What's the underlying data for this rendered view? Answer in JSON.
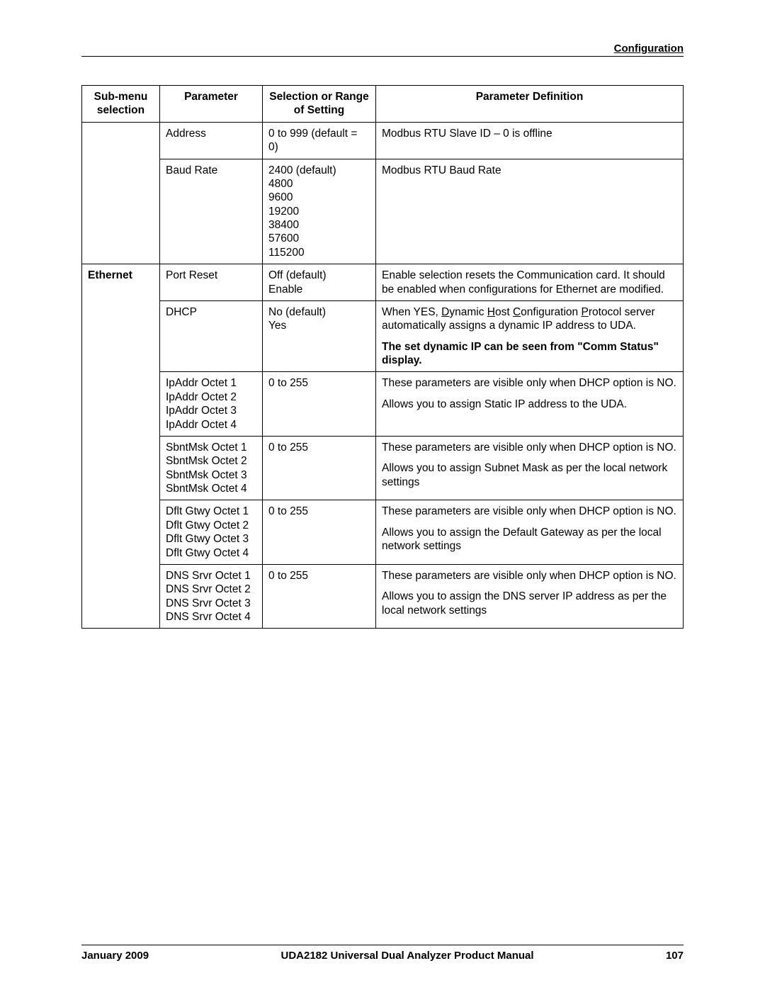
{
  "header": {
    "section": "Configuration"
  },
  "table": {
    "headers": {
      "submenu": "Sub-menu selection",
      "parameter": "Parameter",
      "range": "Selection or Range of Setting",
      "definition": "Parameter Definition"
    },
    "rows": {
      "address": {
        "param": "Address",
        "range": "0 to 999 (default = 0)",
        "def": "Modbus RTU Slave ID – 0 is offline"
      },
      "baud": {
        "param": "Baud Rate",
        "range_lines": [
          "2400 (default)",
          "4800",
          "9600",
          "19200",
          "38400",
          "57600",
          "115200"
        ],
        "def": "Modbus RTU Baud Rate"
      },
      "ethernet_label": "Ethernet",
      "portreset": {
        "param": "Port Reset",
        "range_lines": [
          "Off (default)",
          "Enable"
        ],
        "def": "Enable selection resets the Communication card. It should be enabled when configurations for Ethernet are modified."
      },
      "dhcp": {
        "param": "DHCP",
        "range_lines": [
          "No (default)",
          "Yes"
        ],
        "def_pre": "When YES, ",
        "d": "D",
        "yn": "ynamic ",
        "h": "H",
        "ost": "ost ",
        "c": "C",
        "onf": "onfiguration ",
        "p": "P",
        "rot": "rotocol server automatically assigns a dynamic IP address to UDA.",
        "def_bold": "The set dynamic IP can be seen from \"Comm Status\" display."
      },
      "ipaddr": {
        "param_lines": [
          "IpAddr Octet 1",
          "IpAddr Octet 2",
          "IpAddr Octet 3",
          "IpAddr Octet 4"
        ],
        "range": "0 to 255",
        "def1": "These parameters are visible only when DHCP option is NO.",
        "def2": "Allows you to assign Static IP address to the UDA."
      },
      "subnet": {
        "param_lines": [
          "SbntMsk Octet 1",
          "SbntMsk Octet 2",
          "SbntMsk Octet 3",
          "SbntMsk Octet 4"
        ],
        "range": "0 to 255",
        "def1": "These parameters are visible only when DHCP option is NO.",
        "def2": "Allows you to assign Subnet Mask as per the local network settings"
      },
      "gateway": {
        "param_lines": [
          "Dflt Gtwy Octet 1",
          "Dflt Gtwy Octet 2",
          "Dflt Gtwy Octet 3",
          "Dflt Gtwy Octet 4"
        ],
        "range": "0 to 255",
        "def1": "These parameters are visible only when DHCP option is NO.",
        "def2": "Allows you to assign the Default Gateway as per the local network settings"
      },
      "dns": {
        "param_lines": [
          "DNS Srvr Octet 1",
          "DNS Srvr Octet 2",
          "DNS Srvr Octet 3",
          "DNS Srvr Octet 4"
        ],
        "range": "0 to 255",
        "def1": "These parameters are visible only when DHCP option is NO.",
        "def2": "Allows you to assign the DNS server IP address as per the local network settings"
      }
    }
  },
  "footer": {
    "date": "January 2009",
    "manual": "UDA2182 Universal Dual Analyzer Product Manual",
    "page": "107"
  }
}
